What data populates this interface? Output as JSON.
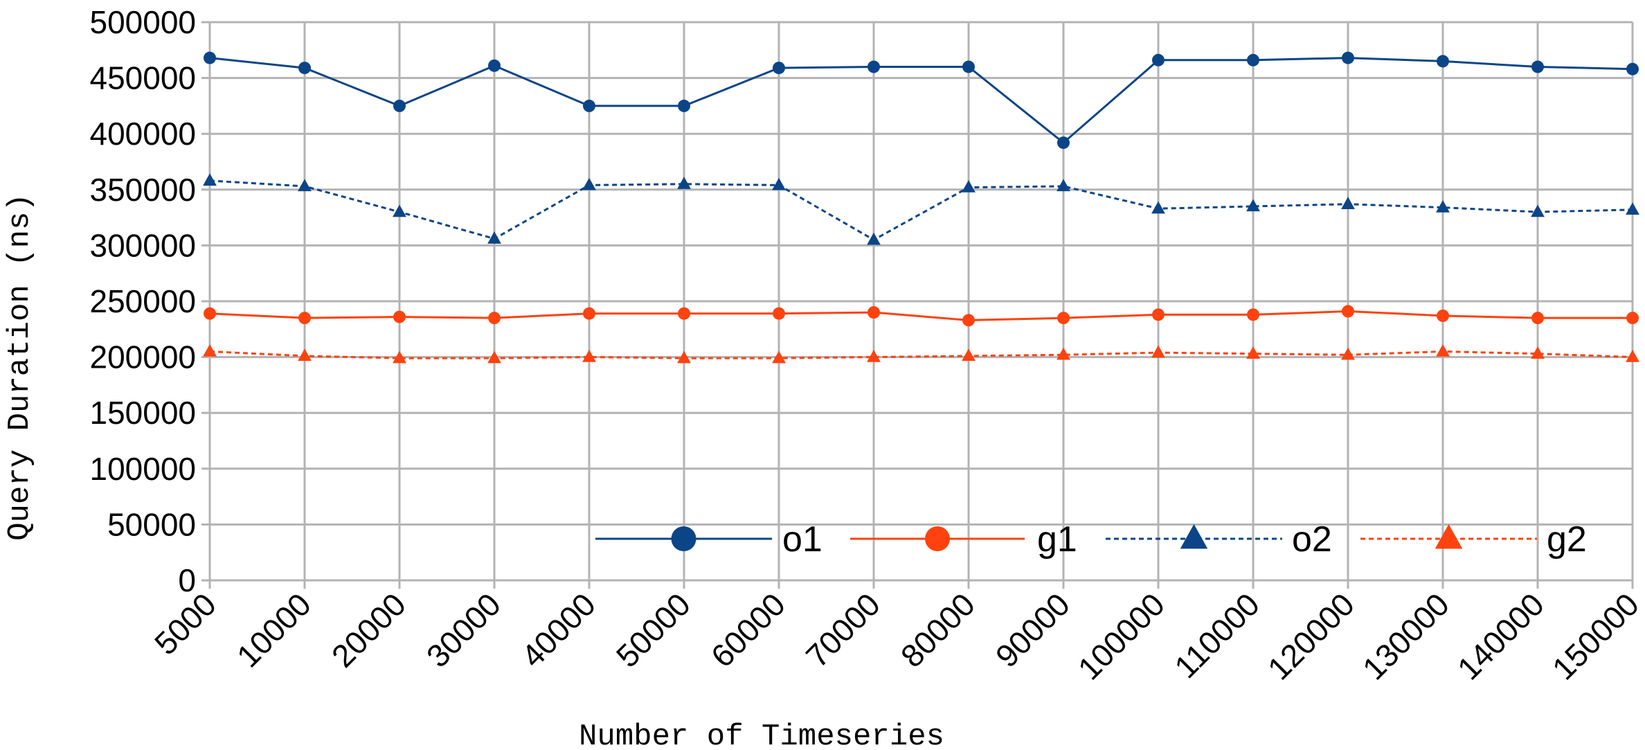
{
  "chart_data": {
    "type": "line",
    "title": "",
    "xlabel": "Number of Timeseries",
    "ylabel": "Query Duration (ns)",
    "categories": [
      "5000",
      "10000",
      "20000",
      "30000",
      "40000",
      "50000",
      "60000",
      "70000",
      "80000",
      "90000",
      "100000",
      "110000",
      "120000",
      "130000",
      "140000",
      "150000"
    ],
    "ylim": [
      0,
      500000
    ],
    "yticks": [
      0,
      50000,
      100000,
      150000,
      200000,
      250000,
      300000,
      350000,
      400000,
      450000,
      500000
    ],
    "grid": true,
    "legend_position": "bottom-right",
    "series": [
      {
        "name": "o1",
        "color": "#0b4587",
        "marker": "circle",
        "dash": "solid",
        "values": [
          468000,
          459000,
          425000,
          461000,
          425000,
          425000,
          459000,
          460000,
          460000,
          392000,
          466000,
          466000,
          468000,
          465000,
          460000,
          458000
        ]
      },
      {
        "name": "g1",
        "color": "#ff420e",
        "marker": "circle",
        "dash": "solid",
        "values": [
          239000,
          235000,
          236000,
          235000,
          239000,
          239000,
          239000,
          240000,
          233000,
          235000,
          238000,
          238000,
          241000,
          237000,
          235000,
          235000
        ]
      },
      {
        "name": "o2",
        "color": "#0b4587",
        "marker": "triangle",
        "dash": "dotted",
        "values": [
          358000,
          353000,
          330000,
          306000,
          354000,
          355000,
          354000,
          305000,
          352000,
          353000,
          333000,
          335000,
          337000,
          334000,
          330000,
          332000
        ]
      },
      {
        "name": "g2",
        "color": "#ff420e",
        "marker": "triangle",
        "dash": "dotted",
        "values": [
          205000,
          201000,
          199000,
          199000,
          200000,
          199000,
          199000,
          200000,
          201000,
          202000,
          204000,
          203000,
          202000,
          205000,
          203000,
          200000
        ]
      }
    ]
  }
}
